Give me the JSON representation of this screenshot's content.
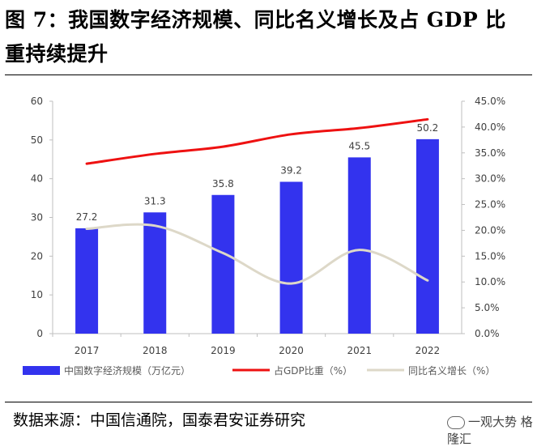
{
  "header": {
    "title_line1": "图 7：我国数字经济规模、同比名义增长及占 GDP 比",
    "title_line2": "重持续提升"
  },
  "footer": {
    "source": "数据来源：中国信通院，国泰君安证券研究",
    "watermark": "一观大势 格隆汇"
  },
  "chart_data": {
    "type": "bar",
    "categories": [
      "2017",
      "2018",
      "2019",
      "2020",
      "2021",
      "2022"
    ],
    "series": [
      {
        "name": "中国数字经济规模（万亿元）",
        "kind": "bar",
        "axis": "left",
        "values": [
          27.2,
          31.3,
          35.8,
          39.2,
          45.5,
          50.2
        ],
        "labels": [
          "27.2",
          "31.3",
          "35.8",
          "39.2",
          "45.5",
          "50.2"
        ],
        "color": "#3333ee"
      },
      {
        "name": "占GDP比重（%）",
        "kind": "line",
        "axis": "right",
        "values": [
          32.9,
          34.8,
          36.2,
          38.6,
          39.8,
          41.5
        ],
        "color": "#ee1111"
      },
      {
        "name": "同比名义增长（%）",
        "kind": "line",
        "axis": "right",
        "values": [
          20.3,
          20.9,
          15.6,
          9.7,
          16.2,
          10.3
        ],
        "color": "#ddd8c8"
      }
    ],
    "y_left": {
      "min": 0,
      "max": 60,
      "ticks": [
        "0",
        "10",
        "20",
        "30",
        "40",
        "50",
        "60"
      ]
    },
    "y_right": {
      "min": 0,
      "max": 45,
      "ticks": [
        "0.0%",
        "5.0%",
        "10.0%",
        "15.0%",
        "20.0%",
        "25.0%",
        "30.0%",
        "35.0%",
        "40.0%",
        "45.0%"
      ]
    },
    "grid": false,
    "legend": "bottom"
  }
}
